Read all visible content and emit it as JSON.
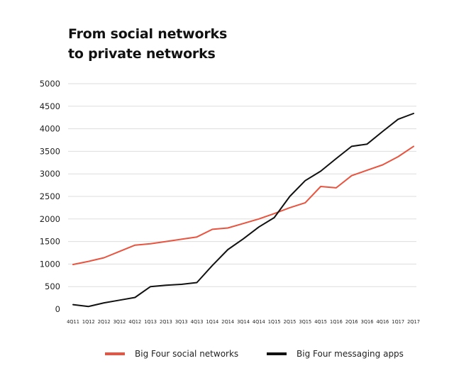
{
  "title_line1": "From social networks",
  "title_line2": "to private networks",
  "chart_data": {
    "type": "line",
    "title": "From social networks to private networks",
    "xlabel": "",
    "ylabel": "",
    "ylim": [
      0,
      5000
    ],
    "yticks": [
      0,
      500,
      1000,
      1500,
      2000,
      2500,
      3000,
      3500,
      4000,
      4500,
      5000
    ],
    "grid": true,
    "legend_position": "bottom",
    "categories": [
      "4Q11",
      "1Q12",
      "2Q12",
      "3Q12",
      "4Q12",
      "1Q13",
      "2Q13",
      "3Q13",
      "4Q13",
      "1Q14",
      "2Q14",
      "3Q14",
      "4Q14",
      "1Q15",
      "2Q15",
      "3Q15",
      "4Q15",
      "1Q16",
      "2Q16",
      "3Q16",
      "4Q16",
      "1Q17",
      "2Q17"
    ],
    "series": [
      {
        "name": "Big Four social networks",
        "color": "#e8543f",
        "values": [
          990,
          1060,
          1140,
          1280,
          1420,
          1450,
          1500,
          1550,
          1600,
          1770,
          1800,
          1900,
          2000,
          2120,
          2250,
          2360,
          2720,
          2690,
          2960,
          3080,
          3200,
          3380,
          3610
        ]
      },
      {
        "name": "Big Four messaging apps",
        "color": "#111111",
        "values": [
          100,
          60,
          140,
          200,
          260,
          500,
          530,
          550,
          590,
          970,
          1320,
          1560,
          1820,
          2030,
          2500,
          2850,
          3060,
          3340,
          3610,
          3660,
          3940,
          4210,
          4340
        ]
      }
    ]
  }
}
